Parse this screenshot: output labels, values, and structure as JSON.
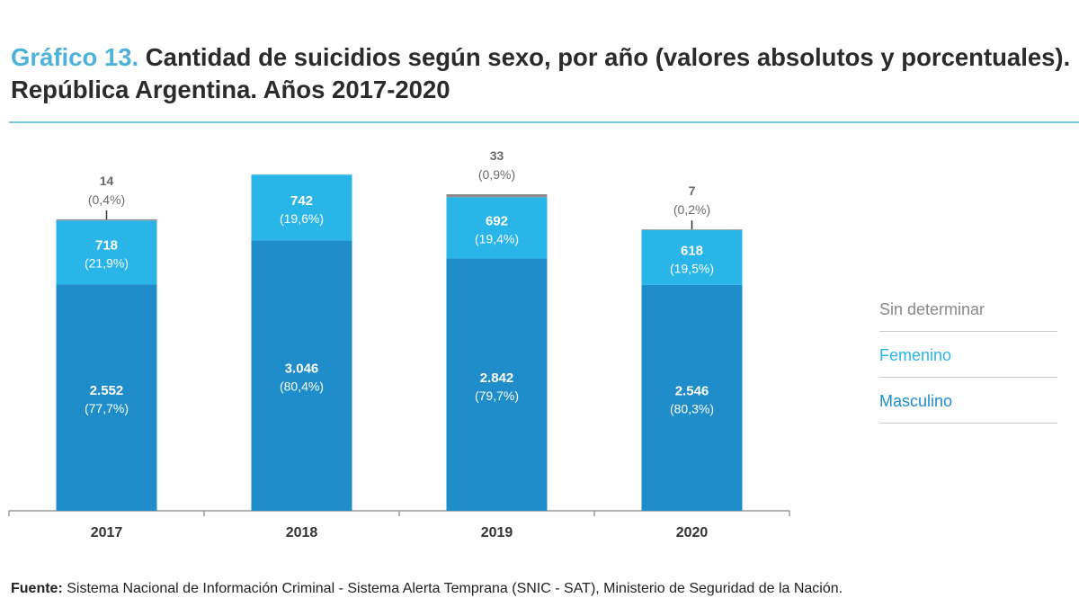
{
  "title": {
    "prefix": "Gráfico 13.",
    "text": " Cantidad de suicidios según sexo, por año (valores absolutos y porcentuales). República Argentina. Años 2017-2020"
  },
  "legend": [
    {
      "label": "Sin determinar",
      "color": "#8a8a8a"
    },
    {
      "label": "Femenino",
      "color": "#29b5e8"
    },
    {
      "label": "Masculino",
      "color": "#1f8dc9"
    }
  ],
  "source": {
    "label": "Fuente:",
    "text": " Sistema Nacional de Información Criminal - Sistema Alerta Temprana (SNIC - SAT), Ministerio de Seguridad de la Nación."
  },
  "chart_data": {
    "type": "bar",
    "stacked": true,
    "categories": [
      "2017",
      "2018",
      "2019",
      "2020"
    ],
    "ylim": [
      0,
      3800
    ],
    "grid": false,
    "legend_position": "right",
    "series": [
      {
        "name": "Masculino",
        "color": "#1f8dc9",
        "label_color": "#ffffff",
        "values": [
          2552,
          3046,
          2842,
          2546
        ],
        "labels": [
          "2.552",
          "3.046",
          "2.842",
          "2.546"
        ],
        "pct_labels": [
          "(77,7%)",
          "(80,4%)",
          "(79,7%)",
          "(80,3%)"
        ]
      },
      {
        "name": "Femenino",
        "color": "#29b5e8",
        "label_color": "#ffffff",
        "values": [
          718,
          742,
          692,
          618
        ],
        "labels": [
          "718",
          "742",
          "692",
          "618"
        ],
        "pct_labels": [
          "(21,9%)",
          "(19,6%)",
          "(19,4%)",
          "(19,5%)"
        ]
      },
      {
        "name": "Sin determinar",
        "color": "#8a8a8a",
        "label_color": "#6b6b6b",
        "values": [
          14,
          0,
          33,
          7
        ],
        "labels": [
          "14",
          "",
          "33",
          "7"
        ],
        "pct_labels": [
          "(0,4%)",
          "",
          "(0,9%)",
          "(0,2%)"
        ]
      }
    ]
  }
}
